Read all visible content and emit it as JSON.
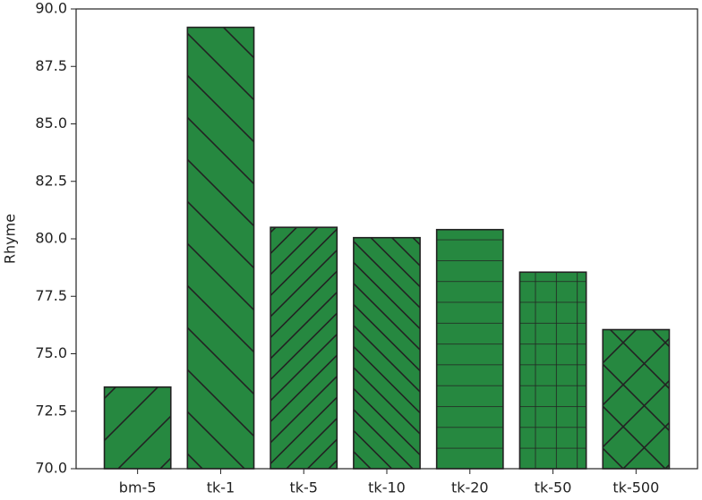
{
  "chart_data": {
    "type": "bar",
    "ylabel": "Rhyme",
    "categories": [
      "bm-5",
      "tk-1",
      "tk-5",
      "tk-10",
      "tk-20",
      "tk-50",
      "tk-500"
    ],
    "values": [
      73.55,
      89.2,
      80.5,
      80.05,
      80.4,
      78.55,
      76.05
    ],
    "color": "#268840",
    "hatches": [
      "/",
      "\\",
      "//",
      "\\\\",
      "-",
      "+",
      "x"
    ],
    "ylim": [
      70,
      90
    ],
    "yticks": [
      {
        "value": 70,
        "label": "70.0"
      },
      72.5,
      {
        "value": 75,
        "label": "75.0"
      },
      77.5,
      {
        "value": 80,
        "label": "80.0"
      },
      82.5,
      {
        "value": 85,
        "label": "85.0"
      },
      87.5,
      {
        "value": 90,
        "label": "90.0"
      }
    ]
  }
}
